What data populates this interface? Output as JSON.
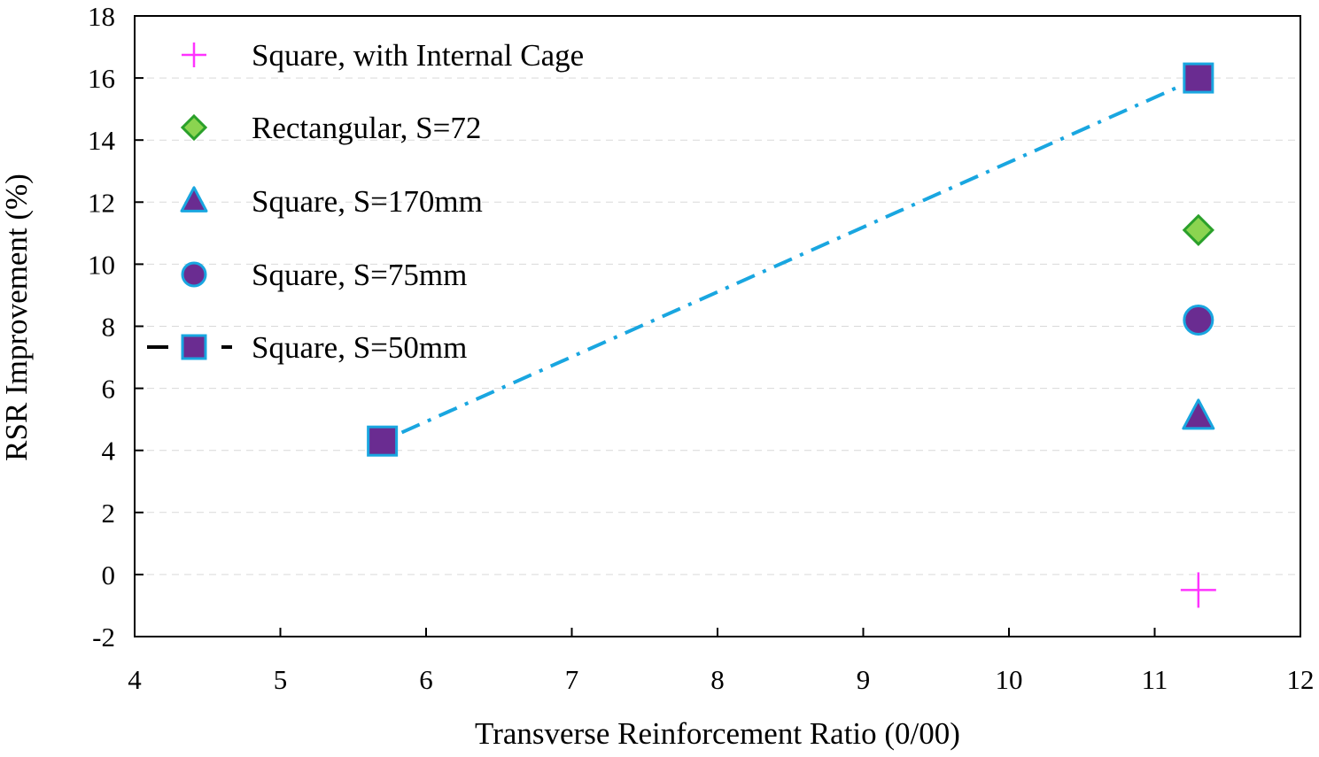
{
  "chart_data": {
    "type": "scatter",
    "title": "",
    "xlabel": "Transverse Reinforcement Ratio (0/00)",
    "ylabel": "RSR Improvement (%)",
    "xlim": [
      4,
      12
    ],
    "ylim": [
      -2,
      18
    ],
    "x_ticks": [
      4,
      5,
      6,
      7,
      8,
      9,
      10,
      11,
      12
    ],
    "y_ticks": [
      -2,
      0,
      2,
      4,
      6,
      8,
      10,
      12,
      14,
      16,
      18
    ],
    "grid": "horizontal dashed",
    "legend_position": "top-left",
    "series": [
      {
        "name": "Square, with Internal Cage",
        "marker": "plus",
        "color": "#ff33ff",
        "line": "none",
        "points": [
          [
            11.3,
            -0.5
          ]
        ]
      },
      {
        "name": "Rectangular, S=72",
        "marker": "diamond",
        "color": "#8bd450",
        "edge": "#2aa02a",
        "line": "none",
        "points": [
          [
            11.3,
            11.1
          ]
        ]
      },
      {
        "name": "Square, S=170mm",
        "marker": "triangle",
        "color": "#6a2c91",
        "edge": "#19a6e0",
        "line": "none",
        "points": [
          [
            11.3,
            5.1
          ]
        ]
      },
      {
        "name": "Square, S=75mm",
        "marker": "circle",
        "color": "#6a2c91",
        "edge": "#19a6e0",
        "line": "none",
        "points": [
          [
            11.3,
            8.2
          ]
        ]
      },
      {
        "name": "Square, S=50mm",
        "marker": "square",
        "color": "#6a2c91",
        "edge": "#19a6e0",
        "line": "dash-dot",
        "line_color": "#19a6e0",
        "legend_line_color": "#000000",
        "points": [
          [
            5.7,
            4.3
          ],
          [
            11.3,
            16.0
          ]
        ]
      }
    ]
  }
}
